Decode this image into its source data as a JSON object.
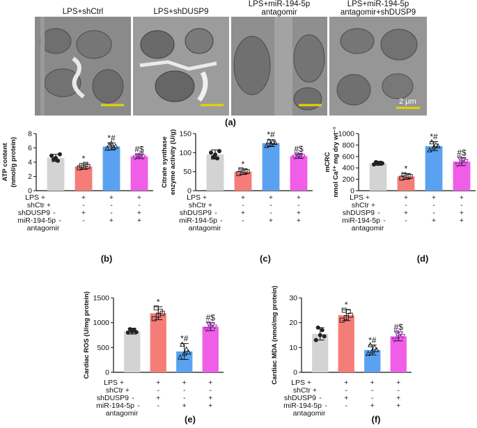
{
  "panel_a": {
    "images": [
      {
        "title": "LPS+shCtrl",
        "title2": "",
        "scale_bar": ""
      },
      {
        "title": "LPS+shDUSP9",
        "title2": "",
        "scale_bar": ""
      },
      {
        "title": "LPS+miR-194-5p",
        "title2": "antagomir",
        "scale_bar": ""
      },
      {
        "title": "LPS+miR-194-5p",
        "title2": "antagomir+shDUSP9",
        "scale_bar": "2 μm"
      }
    ],
    "label": "(a)"
  },
  "rows": {
    "lps": "LPS",
    "shctr": "shCtr",
    "shdusp9": "shDUSP9",
    "mir": "miR-194-5p",
    "antagomir": "antagomir",
    "signs": {
      "lps": [
        "+",
        "+",
        "+",
        "+"
      ],
      "shctr": [
        "+",
        "-",
        "-",
        "-"
      ],
      "shdusp9": [
        "-",
        "+",
        "-",
        "+"
      ],
      "mir": [
        "-",
        "-",
        "+",
        "+"
      ]
    }
  },
  "colors": [
    "#d3d3d3",
    "#f47d78",
    "#5aa2f0",
    "#f05de6"
  ],
  "chart_data": [
    {
      "id": "b",
      "type": "bar",
      "label": "(b)",
      "ylabel": "ATP content",
      "ylabel2": "(nmol/g protein)",
      "ylim": [
        0,
        8
      ],
      "ticks": [
        0,
        2,
        4,
        6,
        8
      ],
      "values": [
        4.6,
        3.4,
        6.2,
        4.8
      ],
      "errors": [
        0.5,
        0.4,
        0.5,
        0.3
      ],
      "annotations": [
        "",
        "*",
        "*#",
        "#$"
      ],
      "markers": [
        "circle",
        "square",
        "triangle",
        "triangle-down"
      ],
      "points": [
        [
          4.9,
          4.4,
          4.6,
          4.2,
          5.1
        ],
        [
          3.2,
          3.5,
          3.3,
          3.7,
          3.4
        ],
        [
          5.9,
          6.4,
          6.6,
          6.0,
          6.2
        ],
        [
          4.6,
          4.9,
          4.8,
          5.0,
          4.7
        ]
      ]
    },
    {
      "id": "c",
      "type": "bar",
      "label": "(c)",
      "ylabel": "Citrate synthase",
      "ylabel2": "enzyme activity (U/g)",
      "ylim": [
        0,
        150
      ],
      "ticks": [
        0,
        50,
        100,
        150
      ],
      "values": [
        95,
        50,
        125,
        91
      ],
      "errors": [
        12,
        7,
        9,
        6
      ],
      "annotations": [
        "",
        "*",
        "*#",
        "#$"
      ],
      "markers": [
        "circle",
        "square",
        "triangle",
        "triangle-down"
      ],
      "points": [
        [
          100,
          88,
          95,
          85,
          104
        ],
        [
          45,
          55,
          48,
          52,
          50
        ],
        [
          118,
          130,
          122,
          128,
          126
        ],
        [
          88,
          95,
          90,
          93,
          89
        ]
      ]
    },
    {
      "id": "d",
      "type": "bar",
      "label": "(d)",
      "ylabel": "mCRC",
      "ylabel2": "nmol Ca²⁺ mg dry wt⁻¹",
      "ylim": [
        0,
        1000
      ],
      "ticks": [
        0,
        200,
        400,
        600,
        800,
        1000
      ],
      "values": [
        480,
        250,
        780,
        510
      ],
      "errors": [
        35,
        50,
        80,
        70
      ],
      "annotations": [
        "",
        "*",
        "*#",
        "#$"
      ],
      "markers": [
        "circle",
        "square",
        "triangle",
        "triangle-down"
      ],
      "points": [
        [
          460,
          500,
          470,
          490,
          480
        ],
        [
          220,
          280,
          240,
          260,
          250
        ],
        [
          710,
          850,
          760,
          800,
          780
        ],
        [
          450,
          570,
          490,
          530,
          510
        ]
      ]
    },
    {
      "id": "e",
      "type": "bar",
      "label": "(e)",
      "ylabel": "Cardiac ROS (U/mg protein)",
      "ylabel2": "",
      "ylim": [
        0,
        1500
      ],
      "ticks": [
        0,
        500,
        1000,
        1500
      ],
      "values": [
        830,
        1190,
        420,
        920
      ],
      "errors": [
        60,
        130,
        160,
        80
      ],
      "annotations": [
        "",
        "*",
        "*#",
        "#$"
      ],
      "markers": [
        "circle",
        "square",
        "triangle",
        "triangle-down"
      ],
      "points": [
        [
          800,
          870,
          820,
          850,
          810
        ],
        [
          1080,
          1300,
          1150,
          1230,
          1190
        ],
        [
          300,
          560,
          380,
          460,
          400
        ],
        [
          860,
          980,
          900,
          950,
          910
        ]
      ]
    },
    {
      "id": "f",
      "type": "bar",
      "label": "(f)",
      "ylabel": "Cardiac MDA (nmol/mg protein)",
      "ylabel2": "",
      "ylim": [
        0,
        30
      ],
      "ticks": [
        0,
        10,
        20,
        30
      ],
      "values": [
        15.5,
        23,
        9,
        14.5
      ],
      "errors": [
        2.5,
        2.2,
        2,
        1.8
      ],
      "annotations": [
        "",
        "*",
        "*#",
        "#$"
      ],
      "markers": [
        "circle",
        "square",
        "triangle",
        "triangle-down"
      ],
      "points": [
        [
          13,
          18,
          15,
          17,
          14.5
        ],
        [
          21,
          25,
          22,
          24.5,
          23
        ],
        [
          7.5,
          11,
          8.5,
          10,
          9
        ],
        [
          13,
          16,
          14,
          15.5,
          14.5
        ]
      ]
    }
  ]
}
